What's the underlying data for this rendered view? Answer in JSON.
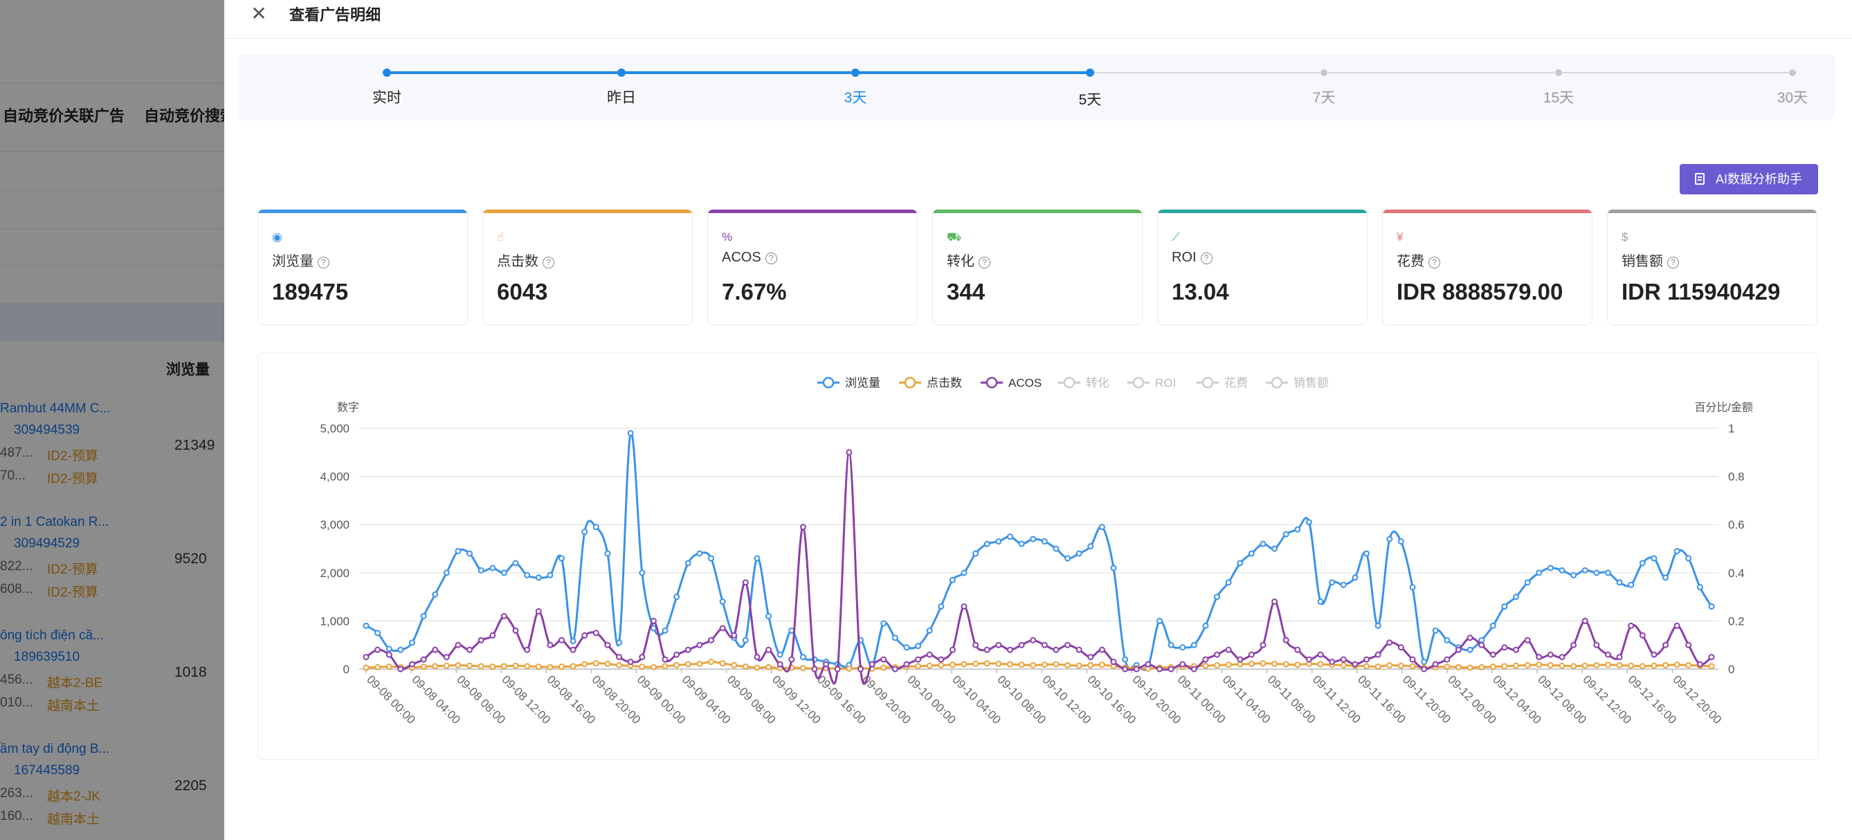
{
  "background": {
    "col_headers": [
      "自动竞价关联广告",
      "自动竞价搜索"
    ],
    "subheader": "浏览量",
    "items": [
      {
        "title": "Rambut 44MM C...",
        "id": "309494539",
        "lines": [
          {
            "code": "487...",
            "tag": "ID2-预算"
          },
          {
            "code": "70...",
            "tag": "ID2-预算"
          }
        ],
        "value": "21349"
      },
      {
        "title": "2 in 1 Catokan R...",
        "id": "309494529",
        "lines": [
          {
            "code": "822...",
            "tag": "ID2-预算"
          },
          {
            "code": "608...",
            "tag": "ID2-预算"
          }
        ],
        "value": "9520"
      },
      {
        "title": "ông tích điện cầ...",
        "id": "189639510",
        "lines": [
          {
            "code": "456...",
            "tag": "越本2-BE"
          },
          {
            "code": "010...",
            "tag": "越南本土"
          }
        ],
        "value": "1018"
      },
      {
        "title": "ầm tay di động B...",
        "id": "167445589",
        "lines": [
          {
            "code": "263...",
            "tag": "越本2-JK"
          },
          {
            "code": "160...",
            "tag": "越南本土"
          }
        ],
        "value": "2205"
      }
    ]
  },
  "drawer": {
    "title": "查看广告明细",
    "ai_button": "AI数据分析助手"
  },
  "steps": [
    {
      "label": "实时",
      "state": "done"
    },
    {
      "label": "昨日",
      "state": "done"
    },
    {
      "label": "3天",
      "state": "current"
    },
    {
      "label": "5天",
      "state": "done-last"
    },
    {
      "label": "7天",
      "state": "todo"
    },
    {
      "label": "15天",
      "state": "todo"
    },
    {
      "label": "30天",
      "state": "todo"
    }
  ],
  "cards": [
    {
      "name": "浏览量",
      "value": "189475",
      "color": "#3a93e6",
      "icon": "eye-icon"
    },
    {
      "name": "点击数",
      "value": "6043",
      "color": "#e9a23b",
      "icon": "thumb-up-icon"
    },
    {
      "name": "ACOS",
      "value": "7.67%",
      "color": "#8a3fa8",
      "icon": "percent-icon"
    },
    {
      "name": "转化",
      "value": "344",
      "color": "#5cb85c",
      "icon": "cart-icon"
    },
    {
      "name": "ROI",
      "value": "13.04",
      "color": "#26a69a",
      "icon": "chart-line-icon"
    },
    {
      "name": "花费",
      "value": "IDR 8888579.00",
      "color": "#e57373",
      "icon": "money-icon"
    },
    {
      "name": "销售额",
      "value": "IDR 115940429",
      "color": "#9e9e9e",
      "icon": "dollar-icon"
    }
  ],
  "chart_data": {
    "type": "line",
    "legend": [
      {
        "name": "浏览量",
        "active": true,
        "color": "#3a93e6"
      },
      {
        "name": "点击数",
        "active": true,
        "color": "#e9a23b"
      },
      {
        "name": "ACOS",
        "active": true,
        "color": "#8a3fa8"
      },
      {
        "name": "转化",
        "active": false,
        "color": "#cccccc"
      },
      {
        "name": "ROI",
        "active": false,
        "color": "#cccccc"
      },
      {
        "name": "花费",
        "active": false,
        "color": "#cccccc"
      },
      {
        "name": "销售额",
        "active": false,
        "color": "#cccccc"
      }
    ],
    "legend_position": "top-center",
    "ylabel_left": "数字",
    "ylabel_right": "百分比/金额",
    "y_left_range": [
      0,
      5000
    ],
    "y_left_ticks": [
      "0",
      "1,000",
      "2,000",
      "3,000",
      "4,000",
      "5,000"
    ],
    "y_right_range": [
      0,
      1
    ],
    "y_right_ticks": [
      "0",
      "0.2",
      "0.4",
      "0.6",
      "0.8",
      "1"
    ],
    "x_tick_labels": [
      "09-08 00:00",
      "09-08 04:00",
      "09-08 08:00",
      "09-08 12:00",
      "09-08 16:00",
      "09-08 20:00",
      "09-09 00:00",
      "09-09 04:00",
      "09-09 08:00",
      "09-09 12:00",
      "09-09 16:00",
      "09-09 20:00",
      "09-10 00:00",
      "09-10 04:00",
      "09-10 08:00",
      "09-10 12:00",
      "09-10 16:00",
      "09-10 20:00",
      "09-11 00:00",
      "09-11 04:00",
      "09-11 08:00",
      "09-11 12:00",
      "09-11 16:00",
      "09-11 20:00",
      "09-12 00:00",
      "09-12 04:00",
      "09-12 08:00",
      "09-12 12:00",
      "09-12 16:00",
      "09-12 20:00"
    ],
    "grid": true,
    "series": [
      {
        "name": "浏览量",
        "axis": "left",
        "values": [
          900,
          750,
          420,
          400,
          550,
          1100,
          1550,
          2000,
          2450,
          2400,
          2050,
          2100,
          2000,
          2200,
          1950,
          1900,
          1950,
          2300,
          580,
          2850,
          2950,
          2400,
          550,
          4900,
          2000,
          850,
          800,
          1500,
          2200,
          2400,
          2300,
          1400,
          650,
          600,
          2300,
          1100,
          300,
          800,
          250,
          200,
          150,
          100,
          80,
          600,
          80,
          950,
          650,
          450,
          480,
          800,
          1300,
          1850,
          2000,
          2400,
          2600,
          2650,
          2750,
          2600,
          2700,
          2650,
          2500,
          2300,
          2400,
          2550,
          2950,
          2100,
          200,
          80,
          50,
          1000,
          500,
          450,
          500,
          900,
          1500,
          1800,
          2200,
          2400,
          2600,
          2500,
          2800,
          2900,
          3050,
          1400,
          1800,
          1750,
          1900,
          2400,
          900,
          2700,
          2650,
          1700,
          150,
          800,
          600,
          450,
          400,
          600,
          900,
          1300,
          1500,
          1800,
          2000,
          2100,
          2050,
          1950,
          2050,
          2000,
          2000,
          1800,
          1750,
          2200,
          2300,
          1900,
          2450,
          2300,
          1700,
          1300
        ]
      },
      {
        "name": "点击数",
        "axis": "left",
        "values": [
          30,
          40,
          50,
          40,
          30,
          50,
          60,
          70,
          80,
          70,
          60,
          50,
          60,
          70,
          60,
          50,
          40,
          50,
          60,
          100,
          120,
          110,
          80,
          70,
          50,
          40,
          60,
          80,
          100,
          110,
          150,
          120,
          80,
          50,
          30,
          40,
          20,
          30,
          20,
          10,
          20,
          10,
          10,
          20,
          10,
          30,
          40,
          50,
          60,
          70,
          80,
          90,
          100,
          110,
          120,
          110,
          100,
          90,
          80,
          90,
          100,
          80,
          70,
          80,
          90,
          60,
          30,
          20,
          10,
          30,
          40,
          50,
          60,
          70,
          80,
          90,
          100,
          110,
          120,
          110,
          100,
          90,
          110,
          100,
          90,
          80,
          70,
          60,
          50,
          80,
          70,
          60,
          30,
          40,
          50,
          40,
          30,
          40,
          50,
          60,
          70,
          80,
          90,
          80,
          70,
          60,
          70,
          80,
          90,
          80,
          70,
          60,
          70,
          80,
          90,
          80,
          70,
          60
        ]
      },
      {
        "name": "ACOS",
        "axis": "right",
        "values": [
          0.05,
          0.08,
          0.06,
          0.0,
          0.02,
          0.04,
          0.08,
          0.05,
          0.1,
          0.08,
          0.12,
          0.14,
          0.22,
          0.16,
          0.08,
          0.24,
          0.1,
          0.12,
          0.08,
          0.14,
          0.15,
          0.1,
          0.05,
          0.03,
          0.05,
          0.2,
          0.04,
          0.06,
          0.08,
          0.1,
          0.12,
          0.17,
          0.14,
          0.36,
          0.05,
          0.08,
          0.02,
          0.04,
          0.59,
          0.0,
          0.02,
          0.0,
          0.9,
          0.0,
          0.02,
          0.04,
          0.0,
          0.02,
          0.04,
          0.06,
          0.04,
          0.08,
          0.26,
          0.1,
          0.08,
          0.1,
          0.08,
          0.1,
          0.12,
          0.1,
          0.08,
          0.1,
          0.08,
          0.05,
          0.08,
          0.03,
          0.0,
          0.0,
          0.02,
          0.0,
          0.0,
          0.02,
          0.0,
          0.04,
          0.06,
          0.08,
          0.04,
          0.06,
          0.1,
          0.28,
          0.12,
          0.08,
          0.04,
          0.06,
          0.03,
          0.04,
          0.02,
          0.04,
          0.06,
          0.11,
          0.09,
          0.04,
          0.0,
          0.02,
          0.04,
          0.08,
          0.13,
          0.1,
          0.06,
          0.09,
          0.08,
          0.12,
          0.05,
          0.06,
          0.05,
          0.1,
          0.2,
          0.1,
          0.06,
          0.05,
          0.18,
          0.14,
          0.06,
          0.1,
          0.18,
          0.1,
          0.02,
          0.05
        ]
      }
    ]
  }
}
